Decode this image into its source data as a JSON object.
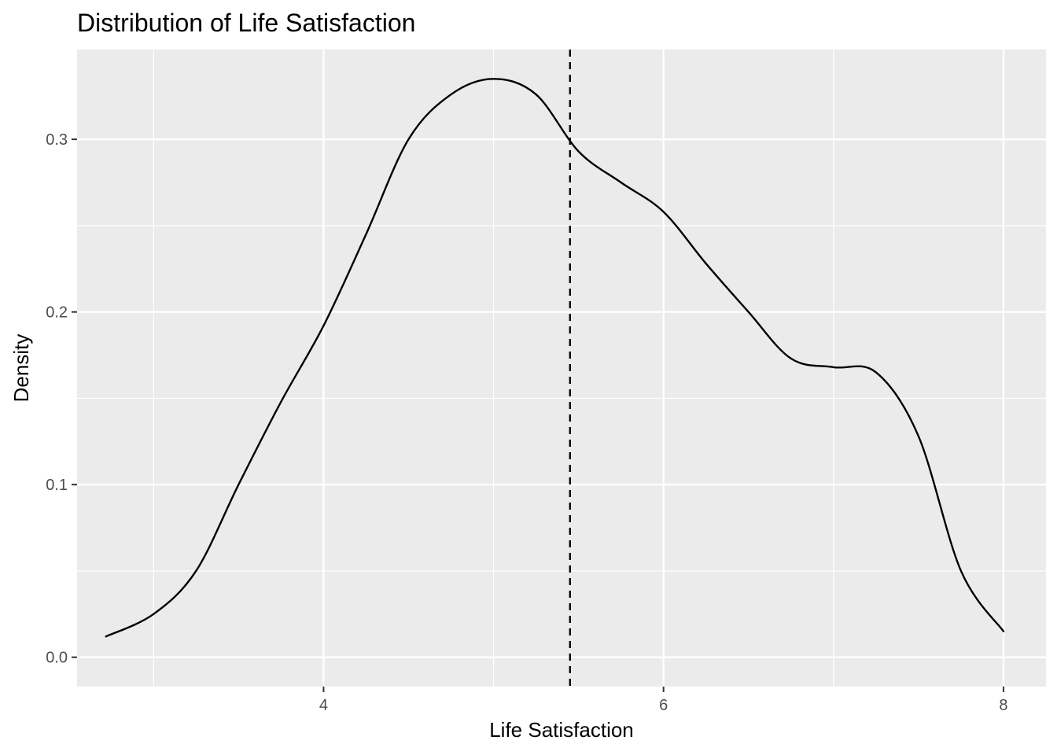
{
  "chart_data": {
    "type": "line",
    "title": "Distribution of Life Satisfaction",
    "xlabel": "Life Satisfaction",
    "ylabel": "Density",
    "xlim": [
      2.55,
      8.25
    ],
    "ylim": [
      -0.017,
      0.352
    ],
    "x_ticks": [
      4,
      6,
      8
    ],
    "x_tick_labels": [
      "4",
      "6",
      "8"
    ],
    "x_minor_ticks": [
      3,
      5,
      7
    ],
    "y_ticks": [
      0.0,
      0.1,
      0.2,
      0.3
    ],
    "y_tick_labels": [
      "0.0",
      "0.1",
      "0.2",
      "0.3"
    ],
    "y_minor_ticks": [
      0.05,
      0.15,
      0.25
    ],
    "grid": true,
    "panel_background": "#ebebeb",
    "grid_color": "#ffffff",
    "line_color": "#000000",
    "reference_line": {
      "orientation": "vertical",
      "x": 5.45,
      "style": "dashed"
    },
    "series": [
      {
        "x": [
          2.72,
          3.0,
          3.25,
          3.5,
          3.75,
          4.0,
          4.25,
          4.5,
          4.75,
          5.0,
          5.25,
          5.5,
          5.75,
          6.0,
          6.25,
          6.5,
          6.75,
          7.0,
          7.25,
          7.5,
          7.75,
          8.0
        ],
        "y": [
          0.012,
          0.025,
          0.05,
          0.1,
          0.148,
          0.192,
          0.245,
          0.3,
          0.326,
          0.335,
          0.326,
          0.293,
          0.275,
          0.258,
          0.228,
          0.2,
          0.173,
          0.168,
          0.165,
          0.128,
          0.05,
          0.015
        ]
      }
    ]
  }
}
